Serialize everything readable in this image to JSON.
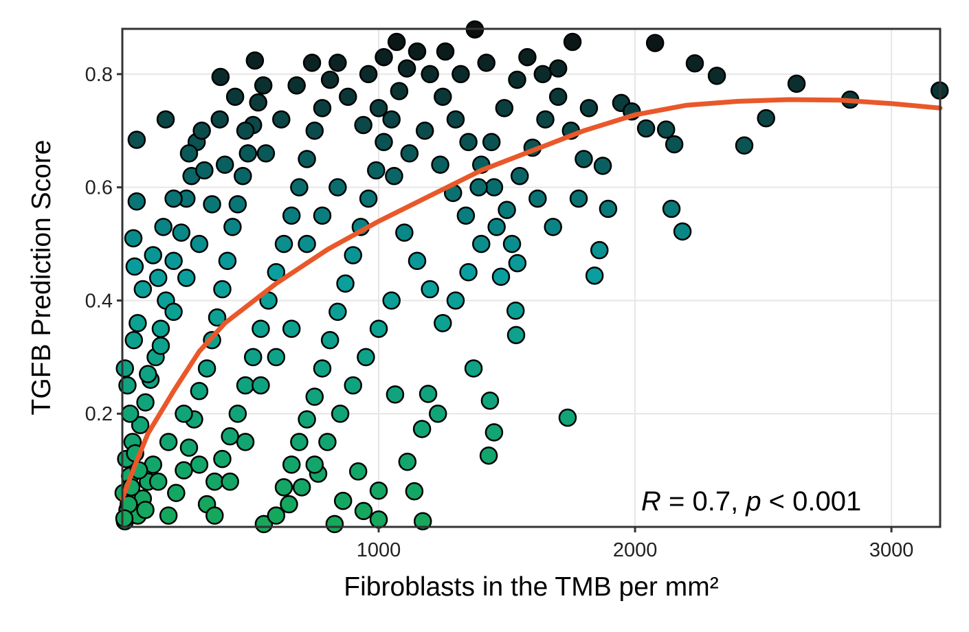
{
  "chart_data": {
    "type": "scatter",
    "title": "",
    "xlabel": "Fibroblasts in the TMB per mm²",
    "ylabel": "TGFB Prediction Score",
    "xlim": [
      0,
      3190
    ],
    "ylim": [
      0,
      0.88
    ],
    "xticks": [
      {
        "value": 1000,
        "label": "1000"
      },
      {
        "value": 2000,
        "label": "2000"
      },
      {
        "value": 3000,
        "label": "3000"
      }
    ],
    "yticks": [
      {
        "value": 0.2,
        "label": "0.2"
      },
      {
        "value": 0.4,
        "label": "0.4"
      },
      {
        "value": 0.6,
        "label": "0.6"
      },
      {
        "value": 0.8,
        "label": "0.8"
      }
    ],
    "grid": true,
    "legend": "none",
    "annotation": {
      "r_symbol": "R",
      "r_text": " = 0.7, ",
      "p_symbol": "p",
      "p_text": " < 0.001"
    },
    "point_color_by": "y",
    "color_stops": [
      [
        0,
        "#16a85a"
      ],
      [
        0.45,
        "#0a9f9f"
      ],
      [
        0.88,
        "#0b0f0f"
      ]
    ],
    "point_outline": "#000000",
    "fit_color": "#e9582a",
    "fit_curve": [
      [
        0,
        0.05
      ],
      [
        50,
        0.11
      ],
      [
        100,
        0.165
      ],
      [
        200,
        0.24
      ],
      [
        300,
        0.31
      ],
      [
        400,
        0.36
      ],
      [
        500,
        0.395
      ],
      [
        600,
        0.43
      ],
      [
        700,
        0.46
      ],
      [
        800,
        0.49
      ],
      [
        900,
        0.515
      ],
      [
        1000,
        0.54
      ],
      [
        1200,
        0.585
      ],
      [
        1400,
        0.63
      ],
      [
        1600,
        0.665
      ],
      [
        1800,
        0.7
      ],
      [
        2000,
        0.728
      ],
      [
        2200,
        0.745
      ],
      [
        2400,
        0.752
      ],
      [
        2600,
        0.755
      ],
      [
        2800,
        0.754
      ],
      [
        3000,
        0.748
      ],
      [
        3190,
        0.74
      ]
    ],
    "points": [
      [
        1375,
        0.879
      ],
      [
        1070,
        0.857
      ],
      [
        1756,
        0.857
      ],
      [
        2078,
        0.855
      ],
      [
        2233,
        0.819
      ],
      [
        2319,
        0.797
      ],
      [
        2630,
        0.783
      ],
      [
        3188,
        0.771
      ],
      [
        2839,
        0.755
      ],
      [
        2511,
        0.722
      ],
      [
        2426,
        0.674
      ],
      [
        2153,
        0.676
      ],
      [
        2142,
        0.562
      ],
      [
        2185,
        0.522
      ],
      [
        1946,
        0.749
      ],
      [
        1987,
        0.734
      ],
      [
        2043,
        0.704
      ],
      [
        2121,
        0.702
      ],
      [
        1874,
        0.638
      ],
      [
        1895,
        0.562
      ],
      [
        1861,
        0.489
      ],
      [
        1842,
        0.444
      ],
      [
        1737,
        0.193
      ],
      [
        1429,
        0.126
      ],
      [
        1450,
        0.167
      ],
      [
        1434,
        0.223
      ],
      [
        1370,
        0.28
      ],
      [
        1534,
        0.382
      ],
      [
        1536,
        0.339
      ],
      [
        1541,
        0.466
      ],
      [
        1477,
        0.442
      ],
      [
        383,
        0.795
      ],
      [
        517,
        0.824
      ],
      [
        56,
        0.684
      ],
      [
        169,
        0.72
      ],
      [
        56,
        0.575
      ],
      [
        43,
        0.51
      ],
      [
        48,
        0.46
      ],
      [
        1172,
        0.01
      ],
      [
        828,
        0.005
      ],
      [
        552,
        0.005
      ],
      [
        10,
        0.28
      ],
      [
        1000,
        0.064
      ],
      [
        1139,
        0.063
      ],
      [
        1112,
        0.115
      ],
      [
        1193,
        0.235
      ],
      [
        1231,
        0.2
      ],
      [
        1064,
        0.234
      ],
      [
        920,
        0.098
      ],
      [
        941,
        0.028
      ],
      [
        1000,
        0.013
      ],
      [
        861,
        0.046
      ],
      [
        764,
        0.094
      ],
      [
        1169,
        0.173
      ],
      [
        10,
        0.01
      ],
      [
        20,
        0.03
      ],
      [
        5,
        0.06
      ],
      [
        30,
        0.09
      ],
      [
        15,
        0.12
      ],
      [
        40,
        0.15
      ],
      [
        60,
        0.02
      ],
      [
        80,
        0.05
      ],
      [
        100,
        0.08
      ],
      [
        120,
        0.11
      ],
      [
        70,
        0.18
      ],
      [
        90,
        0.22
      ],
      [
        110,
        0.26
      ],
      [
        130,
        0.3
      ],
      [
        150,
        0.35
      ],
      [
        170,
        0.4
      ],
      [
        140,
        0.44
      ],
      [
        200,
        0.47
      ],
      [
        230,
        0.52
      ],
      [
        250,
        0.58
      ],
      [
        270,
        0.62
      ],
      [
        290,
        0.68
      ],
      [
        310,
        0.7
      ],
      [
        180,
        0.02
      ],
      [
        210,
        0.06
      ],
      [
        240,
        0.1
      ],
      [
        260,
        0.14
      ],
      [
        280,
        0.19
      ],
      [
        300,
        0.24
      ],
      [
        330,
        0.28
      ],
      [
        350,
        0.33
      ],
      [
        370,
        0.37
      ],
      [
        390,
        0.42
      ],
      [
        410,
        0.47
      ],
      [
        430,
        0.53
      ],
      [
        450,
        0.57
      ],
      [
        470,
        0.62
      ],
      [
        490,
        0.66
      ],
      [
        510,
        0.71
      ],
      [
        530,
        0.75
      ],
      [
        550,
        0.78
      ],
      [
        330,
        0.04
      ],
      [
        360,
        0.08
      ],
      [
        390,
        0.12
      ],
      [
        420,
        0.16
      ],
      [
        450,
        0.2
      ],
      [
        480,
        0.25
      ],
      [
        510,
        0.3
      ],
      [
        540,
        0.35
      ],
      [
        570,
        0.4
      ],
      [
        600,
        0.45
      ],
      [
        630,
        0.5
      ],
      [
        660,
        0.55
      ],
      [
        690,
        0.6
      ],
      [
        720,
        0.65
      ],
      [
        750,
        0.7
      ],
      [
        780,
        0.74
      ],
      [
        810,
        0.79
      ],
      [
        840,
        0.82
      ],
      [
        600,
        0.02
      ],
      [
        630,
        0.07
      ],
      [
        660,
        0.11
      ],
      [
        690,
        0.15
      ],
      [
        720,
        0.19
      ],
      [
        750,
        0.23
      ],
      [
        780,
        0.28
      ],
      [
        810,
        0.33
      ],
      [
        840,
        0.38
      ],
      [
        870,
        0.43
      ],
      [
        900,
        0.48
      ],
      [
        930,
        0.53
      ],
      [
        960,
        0.58
      ],
      [
        990,
        0.63
      ],
      [
        1020,
        0.68
      ],
      [
        1050,
        0.72
      ],
      [
        1080,
        0.77
      ],
      [
        1110,
        0.81
      ],
      [
        1150,
        0.84
      ],
      [
        1200,
        0.8
      ],
      [
        1250,
        0.76
      ],
      [
        1300,
        0.72
      ],
      [
        1350,
        0.68
      ],
      [
        1400,
        0.64
      ],
      [
        1450,
        0.6
      ],
      [
        1500,
        0.56
      ],
      [
        1550,
        0.62
      ],
      [
        1600,
        0.67
      ],
      [
        1650,
        0.72
      ],
      [
        1700,
        0.76
      ],
      [
        1750,
        0.7
      ],
      [
        1800,
        0.65
      ],
      [
        1820,
        0.74
      ],
      [
        1780,
        0.58
      ],
      [
        1680,
        0.53
      ],
      [
        1620,
        0.58
      ],
      [
        1520,
        0.5
      ],
      [
        1460,
        0.53
      ],
      [
        1400,
        0.5
      ],
      [
        1350,
        0.45
      ],
      [
        1300,
        0.4
      ],
      [
        1250,
        0.36
      ],
      [
        1200,
        0.42
      ],
      [
        1150,
        0.47
      ],
      [
        1100,
        0.52
      ],
      [
        1050,
        0.4
      ],
      [
        1000,
        0.35
      ],
      [
        950,
        0.3
      ],
      [
        900,
        0.25
      ],
      [
        850,
        0.2
      ],
      [
        800,
        0.15
      ],
      [
        750,
        0.11
      ],
      [
        700,
        0.07
      ],
      [
        650,
        0.04
      ],
      [
        400,
        0.64
      ],
      [
        350,
        0.57
      ],
      [
        300,
        0.5
      ],
      [
        250,
        0.44
      ],
      [
        200,
        0.38
      ],
      [
        150,
        0.32
      ],
      [
        100,
        0.27
      ],
      [
        60,
        0.36
      ],
      [
        80,
        0.42
      ],
      [
        120,
        0.48
      ],
      [
        160,
        0.53
      ],
      [
        200,
        0.58
      ],
      [
        260,
        0.66
      ],
      [
        320,
        0.63
      ],
      [
        380,
        0.72
      ],
      [
        440,
        0.76
      ],
      [
        480,
        0.7
      ],
      [
        560,
        0.66
      ],
      [
        620,
        0.72
      ],
      [
        680,
        0.78
      ],
      [
        740,
        0.82
      ],
      [
        880,
        0.76
      ],
      [
        940,
        0.71
      ],
      [
        1000,
        0.74
      ],
      [
        1060,
        0.62
      ],
      [
        1120,
        0.66
      ],
      [
        1180,
        0.7
      ],
      [
        1240,
        0.64
      ],
      [
        1290,
        0.59
      ],
      [
        1340,
        0.55
      ],
      [
        1390,
        0.6
      ],
      [
        1440,
        0.68
      ],
      [
        1490,
        0.74
      ],
      [
        1540,
        0.79
      ],
      [
        1580,
        0.83
      ],
      [
        1640,
        0.8
      ],
      [
        1700,
        0.81
      ],
      [
        1260,
        0.84
      ],
      [
        1320,
        0.8
      ],
      [
        1420,
        0.82
      ],
      [
        960,
        0.8
      ],
      [
        1020,
        0.83
      ],
      [
        840,
        0.6
      ],
      [
        780,
        0.55
      ],
      [
        720,
        0.5
      ],
      [
        660,
        0.35
      ],
      [
        600,
        0.3
      ],
      [
        540,
        0.25
      ],
      [
        480,
        0.15
      ],
      [
        420,
        0.08
      ],
      [
        360,
        0.02
      ],
      [
        300,
        0.11
      ],
      [
        240,
        0.2
      ],
      [
        180,
        0.15
      ],
      [
        140,
        0.08
      ],
      [
        30,
        0.2
      ],
      [
        20,
        0.25
      ],
      [
        45,
        0.33
      ],
      [
        25,
        0.04
      ],
      [
        8,
        0.015
      ],
      [
        35,
        0.07
      ],
      [
        50,
        0.13
      ],
      [
        65,
        0.1
      ],
      [
        90,
        0.03
      ]
    ]
  }
}
